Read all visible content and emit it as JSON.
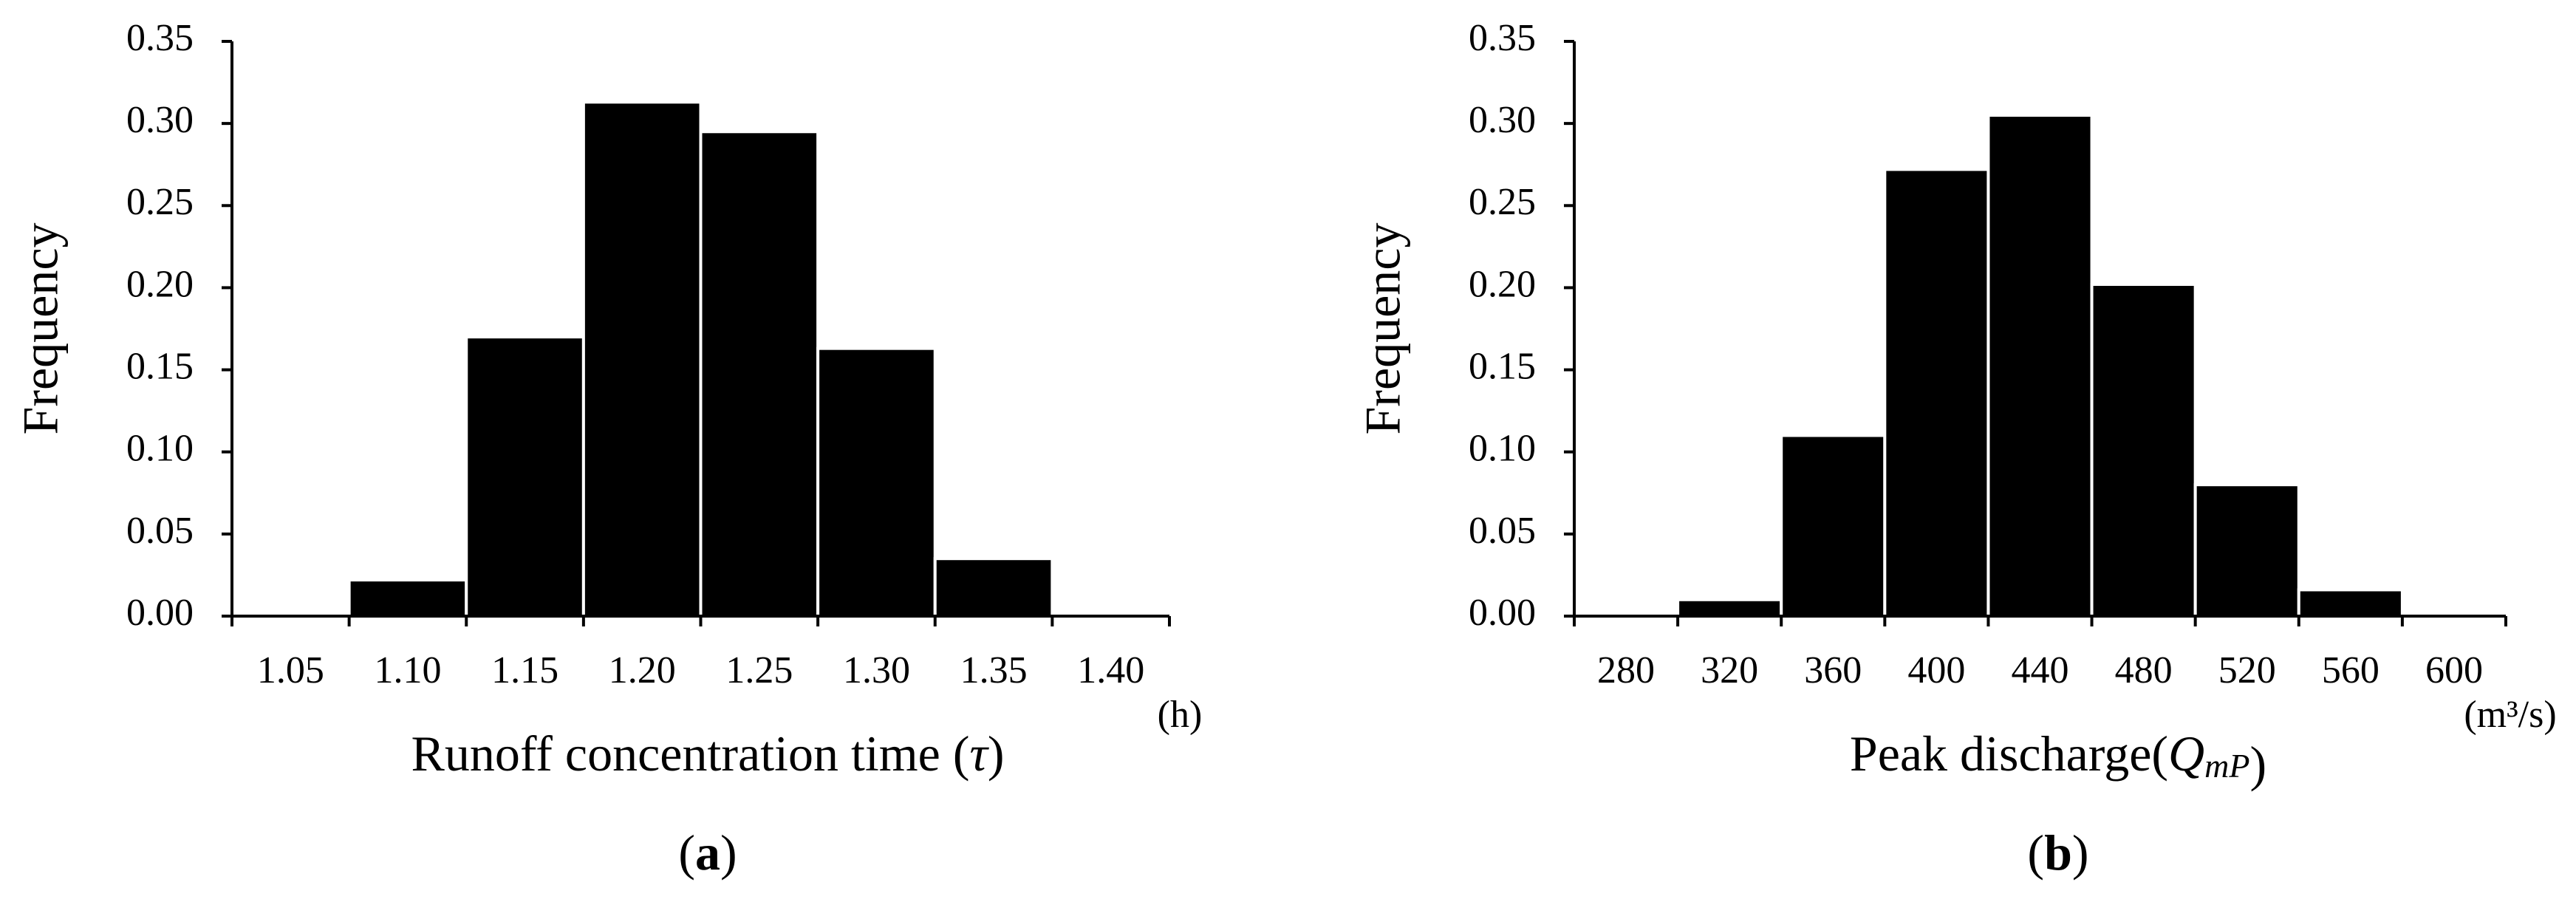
{
  "chart_data": [
    {
      "type": "bar",
      "panel": [
        {
          "text": "("
        },
        {
          "text": "a",
          "style": "bold"
        },
        {
          "text": ")"
        }
      ],
      "ylabel": "Frequency",
      "xlabel": [
        {
          "text": "Runoff concentration time ("
        },
        {
          "text": "τ",
          "style": "italic"
        },
        {
          "text": ")"
        }
      ],
      "unit": "(h)",
      "categories": [
        "1.05",
        "1.10",
        "1.15",
        "1.20",
        "1.25",
        "1.30",
        "1.35",
        "1.40"
      ],
      "values": [
        0,
        0.022,
        0.17,
        0.313,
        0.295,
        0.163,
        0.035,
        0
      ],
      "color": "#000000",
      "ylim": [
        0,
        0.35
      ],
      "yticks": [
        {
          "value": 0,
          "label": "0.00"
        },
        {
          "value": 0.05,
          "label": "0.05"
        },
        {
          "value": 0.1,
          "label": "0.10"
        },
        {
          "value": 0.15,
          "label": "0.15"
        },
        {
          "value": 0.2,
          "label": "0.20"
        },
        {
          "value": 0.25,
          "label": "0.25"
        },
        {
          "value": 0.3,
          "label": "0.30"
        },
        {
          "value": 0.35,
          "label": "0.35"
        }
      ]
    },
    {
      "type": "bar",
      "panel": [
        {
          "text": "("
        },
        {
          "text": "b",
          "style": "bold"
        },
        {
          "text": ")"
        }
      ],
      "ylabel": "Frequency",
      "xlabel": [
        {
          "text": "Peak discharge("
        },
        {
          "text": "Q",
          "style": "italic"
        },
        {
          "text": "mP",
          "style": "italic-sub"
        },
        {
          "text": ")"
        }
      ],
      "unit": "(m³/s)",
      "categories": [
        "280",
        "320",
        "360",
        "400",
        "440",
        "480",
        "520",
        "560",
        "600"
      ],
      "values": [
        0,
        0.01,
        0.11,
        0.272,
        0.305,
        0.202,
        0.08,
        0.016,
        0
      ],
      "color": "#000000",
      "ylim": [
        0,
        0.35
      ],
      "yticks": [
        {
          "value": 0,
          "label": "0.00"
        },
        {
          "value": 0.05,
          "label": "0.05"
        },
        {
          "value": 0.1,
          "label": "0.10"
        },
        {
          "value": 0.15,
          "label": "0.15"
        },
        {
          "value": 0.2,
          "label": "0.20"
        },
        {
          "value": 0.25,
          "label": "0.25"
        },
        {
          "value": 0.3,
          "label": "0.30"
        },
        {
          "value": 0.35,
          "label": "0.35"
        }
      ]
    }
  ]
}
